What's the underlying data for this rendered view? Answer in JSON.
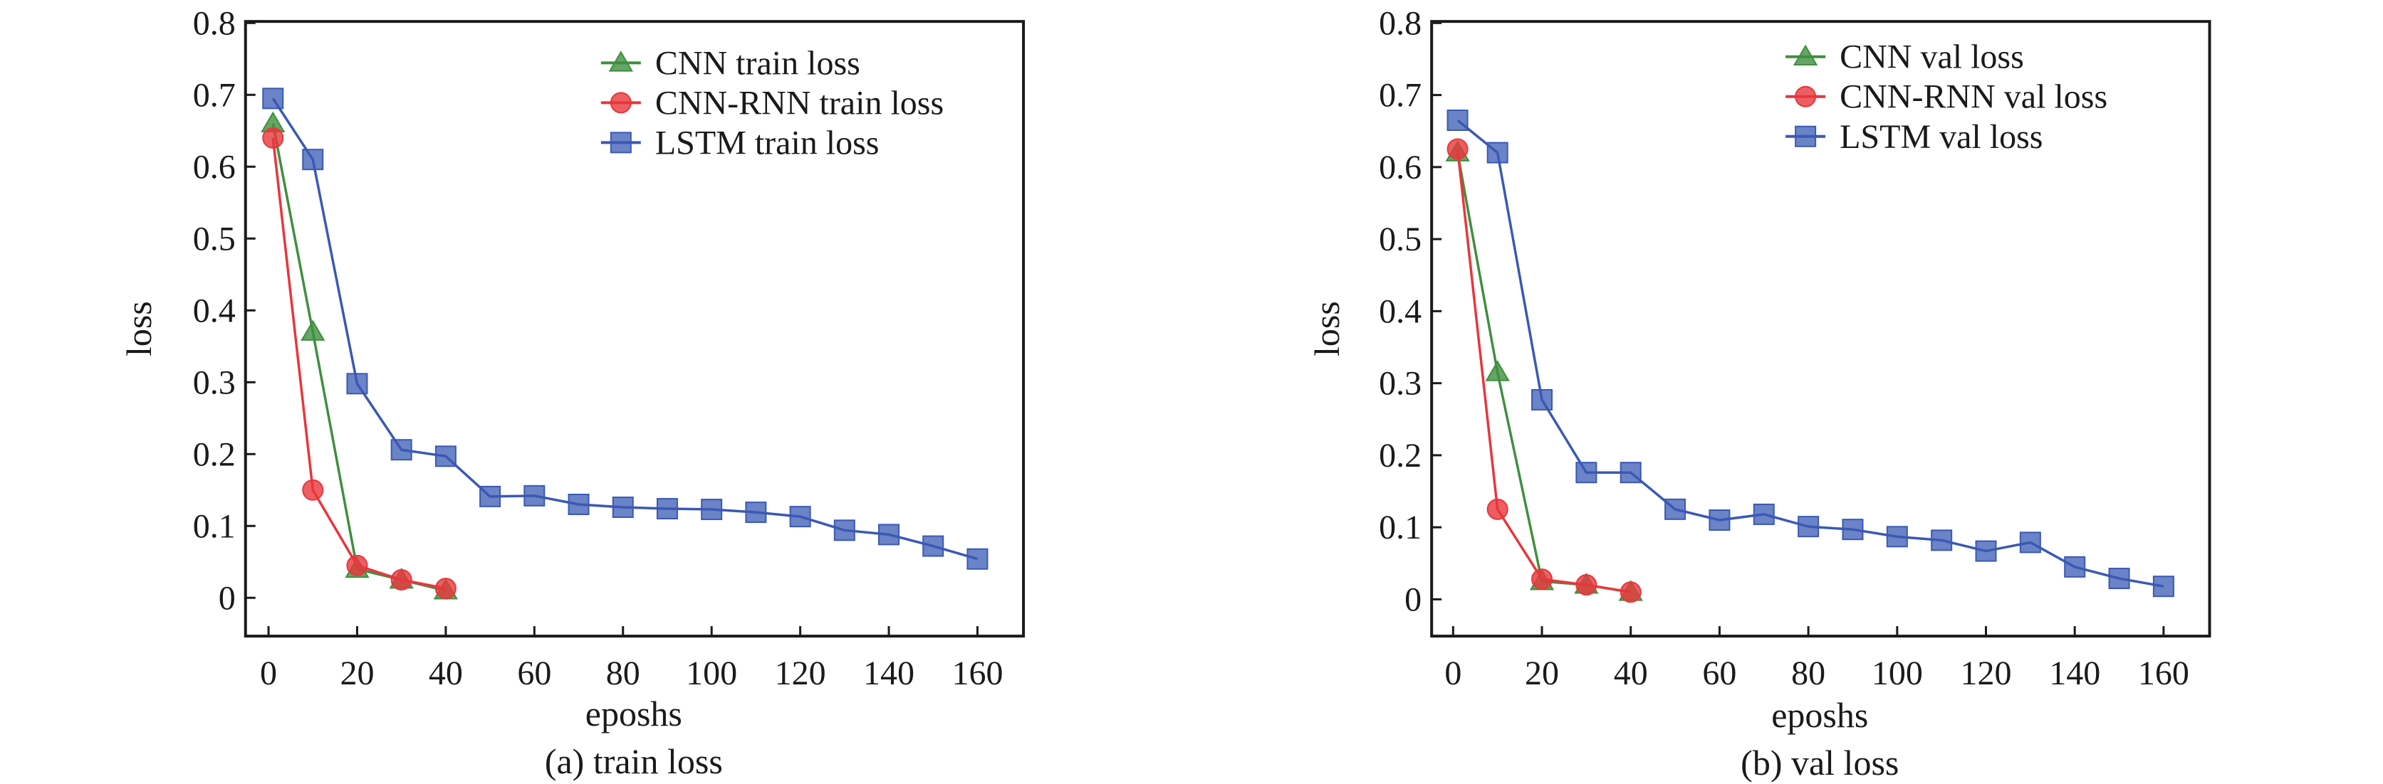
{
  "chart_data": [
    {
      "type": "line",
      "caption": "(a) train loss",
      "xlabel": "eposhs",
      "ylabel": "loss",
      "xlim": [
        -6,
        169
      ],
      "ylim": [
        -0.055,
        0.8
      ],
      "xticks": [
        0,
        20,
        40,
        60,
        80,
        100,
        120,
        140,
        160
      ],
      "xtick_labels": [
        "0",
        "20",
        "40",
        "60",
        "80",
        "100",
        "120",
        "140",
        "160"
      ],
      "yticks": [
        0,
        0.1,
        0.2,
        0.3,
        0.4,
        0.5,
        0.6,
        0.7,
        0.8
      ],
      "ytick_labels": [
        "0",
        "0.1",
        "0.2",
        "0.3",
        "0.4",
        "0.5",
        "0.6",
        "0.7",
        "0.8"
      ],
      "grid": false,
      "legend_position": "top-right",
      "series": [
        {
          "name": "CNN train loss",
          "marker": "triangle",
          "color": "#3f8f3f",
          "x": [
            1,
            10,
            20,
            30,
            40
          ],
          "y": [
            0.66,
            0.37,
            0.04,
            0.025,
            0.01
          ]
        },
        {
          "name": "CNN-RNN train loss",
          "marker": "circle",
          "color": "#e8363c",
          "x": [
            1,
            10,
            20,
            30,
            40
          ],
          "y": [
            0.64,
            0.15,
            0.045,
            0.025,
            0.013
          ]
        },
        {
          "name": "LSTM train loss",
          "marker": "square",
          "color": "#3a59b4",
          "x": [
            1,
            10,
            20,
            30,
            40,
            50,
            60,
            70,
            80,
            90,
            100,
            110,
            120,
            130,
            140,
            150,
            160
          ],
          "y": [
            0.695,
            0.61,
            0.298,
            0.206,
            0.197,
            0.141,
            0.142,
            0.13,
            0.126,
            0.124,
            0.123,
            0.119,
            0.113,
            0.094,
            0.088,
            0.072,
            0.054
          ]
        }
      ]
    },
    {
      "type": "line",
      "caption": "(b) val loss",
      "xlabel": "eposhs",
      "ylabel": "loss",
      "xlim": [
        -6,
        169
      ],
      "ylim": [
        -0.055,
        0.8
      ],
      "xticks": [
        0,
        20,
        40,
        60,
        80,
        100,
        120,
        140,
        160
      ],
      "xtick_labels": [
        "0",
        "20",
        "40",
        "60",
        "80",
        "100",
        "120",
        "140",
        "160"
      ],
      "yticks": [
        0,
        0.1,
        0.2,
        0.3,
        0.4,
        0.5,
        0.6,
        0.7,
        0.8
      ],
      "ytick_labels": [
        "0",
        "0.1",
        "0.2",
        "0.3",
        "0.4",
        "0.5",
        "0.6",
        "0.7",
        "0.8"
      ],
      "grid": false,
      "legend_position": "top-right",
      "series": [
        {
          "name": "CNN val loss",
          "marker": "triangle",
          "color": "#3f8f3f",
          "x": [
            1,
            10,
            20,
            30,
            40
          ],
          "y": [
            0.62,
            0.315,
            0.025,
            0.02,
            0.01
          ]
        },
        {
          "name": "CNN-RNN val loss",
          "marker": "circle",
          "color": "#e8363c",
          "x": [
            1,
            10,
            20,
            30,
            40
          ],
          "y": [
            0.625,
            0.125,
            0.028,
            0.02,
            0.01
          ]
        },
        {
          "name": "LSTM val loss",
          "marker": "square",
          "color": "#3a59b4",
          "x": [
            1,
            10,
            20,
            30,
            40,
            50,
            60,
            70,
            80,
            90,
            100,
            110,
            120,
            130,
            140,
            150,
            160
          ],
          "y": [
            0.665,
            0.62,
            0.277,
            0.176,
            0.176,
            0.125,
            0.11,
            0.118,
            0.101,
            0.097,
            0.087,
            0.082,
            0.067,
            0.079,
            0.045,
            0.029,
            0.018
          ]
        }
      ]
    }
  ]
}
